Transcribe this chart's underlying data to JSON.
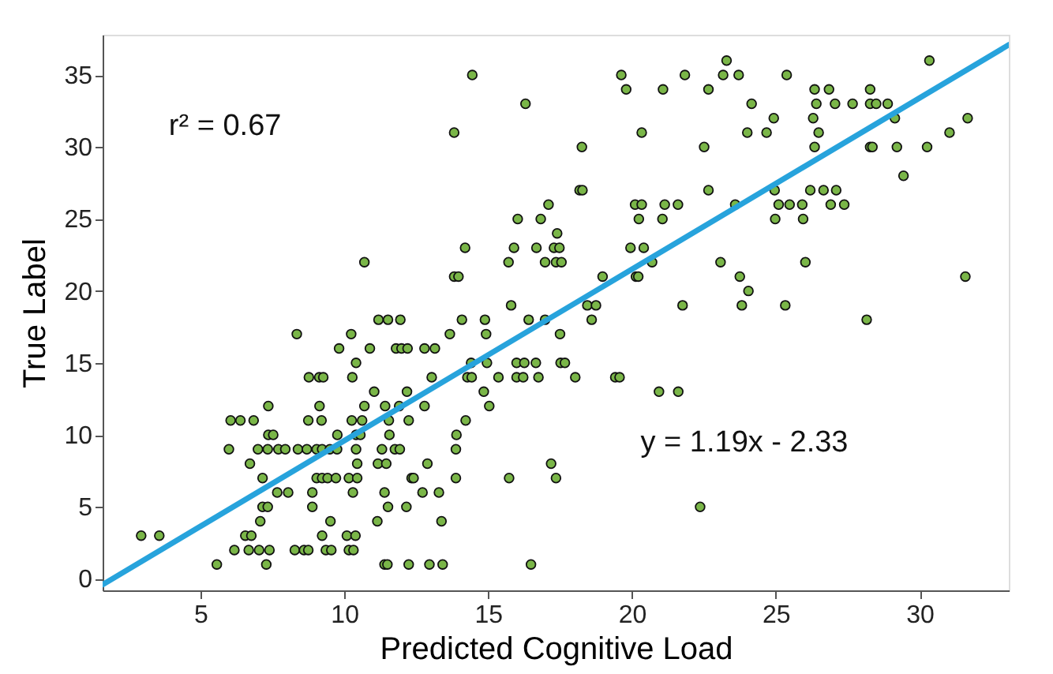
{
  "chart_data": {
    "type": "scatter",
    "xlabel": "Predicted Cognitive Load",
    "ylabel": "True Label",
    "xlim": [
      1.6,
      33.1
    ],
    "ylim": [
      -0.8,
      37.8
    ],
    "xticks": [
      5,
      10,
      15,
      20,
      25,
      30
    ],
    "yticks": [
      0,
      5,
      10,
      15,
      20,
      25,
      30,
      35
    ],
    "grid": false,
    "marker": "circle",
    "annotations": [
      "r² = 0.67",
      "y = 1.19x - 2.33"
    ],
    "series": [
      {
        "color": "#7ab648",
        "x": [
          5.57,
          7.29,
          11.4,
          11.5,
          12.24,
          12.96,
          13.42,
          16.49,
          6.18,
          6.68,
          7.04,
          7.4,
          8.28,
          8.6,
          8.75,
          9.36,
          9.55,
          10.16,
          10.32,
          2.94,
          3.57,
          6.56,
          6.77,
          9.23,
          10.09,
          10.39,
          7.08,
          9.52,
          11.15,
          13.38,
          7.16,
          7.34,
          8.89,
          11.52,
          12.16,
          22.37,
          7.67,
          8.05,
          8.89,
          10.3,
          11.4,
          12.72,
          13.29,
          7.16,
          9.04,
          9.23,
          9.42,
          9.71,
          10.16,
          10.45,
          12.34,
          12.41,
          13.88,
          15.73,
          17.36,
          6.72,
          10.45,
          11.17,
          11.46,
          12.89,
          17.19,
          5.99,
          7.0,
          7.34,
          7.71,
          7.95,
          8.39,
          8.7,
          9.04,
          9.23,
          9.5,
          9.75,
          10.41,
          11.31,
          11.76,
          11.93,
          13.88,
          7.36,
          7.53,
          9.76,
          10.41,
          10.56,
          11.57,
          13.9,
          6.05,
          6.39,
          6.85,
          8.75,
          9.21,
          10.26,
          10.62,
          11.55,
          12.24,
          14.22,
          7.36,
          9.14,
          10.7,
          11.42,
          11.91,
          12.79,
          15.04,
          11.04,
          12.18,
          14.85,
          20.94,
          21.61,
          8.77,
          9.13,
          9.27,
          10.28,
          13.04,
          14.28,
          14.43,
          15.36,
          15.99,
          16.22,
          16.75,
          18.03,
          19.42,
          19.57,
          10.41,
          14.41,
          14.96,
          15.99,
          16.26,
          16.66,
          17.52,
          17.67,
          9.82,
          10.89,
          11.8,
          11.99,
          12.2,
          12.79,
          13.15,
          8.35,
          10.24,
          13.67,
          14.93,
          17.5,
          11.19,
          11.52,
          11.95,
          14.09,
          14.89,
          16.41,
          16.98,
          18.6,
          28.16,
          15.8,
          18.45,
          18.75,
          21.76,
          23.82,
          25.33,
          24.05,
          13.82,
          13.97,
          18.98,
          20.14,
          20.22,
          23.75,
          31.59,
          10.7,
          15.71,
          16.98,
          17.36,
          17.55,
          20.7,
          23.08,
          26.03,
          14.2,
          15.9,
          16.68,
          17.29,
          17.48,
          19.95,
          20.41,
          17.4,
          16.03,
          16.83,
          20.24,
          21.06,
          24.98,
          25.95,
          17.1,
          20.11,
          20.34,
          21.14,
          21.6,
          23.59,
          25.1,
          25.48,
          25.92,
          26.91,
          27.38,
          18.18,
          18.28,
          22.66,
          24.96,
          26.2,
          26.66,
          27.1,
          29.44,
          18.26,
          22.51,
          26.35,
          28.28,
          28.36,
          29.21,
          30.26,
          13.82,
          20.34,
          24.01,
          24.68,
          26.49,
          31.04,
          24.93,
          26.3,
          29.14,
          31.67,
          16.3,
          24.16,
          26.41,
          27.06,
          27.67,
          28.28,
          28.49,
          28.89,
          19.8,
          21.08,
          22.66,
          26.35,
          26.85,
          28.28,
          14.45,
          19.63,
          21.84,
          23.17,
          23.71,
          25.38,
          23.29,
          30.34
        ],
        "values": [
          1,
          1,
          1,
          1,
          1,
          1,
          1,
          1,
          2,
          2,
          2,
          2,
          2,
          2,
          2,
          2,
          2,
          2,
          2,
          3,
          3,
          3,
          3,
          3,
          3,
          3,
          4,
          4,
          4,
          4,
          5,
          5,
          5,
          5,
          5,
          5,
          6,
          6,
          6,
          6,
          6,
          6,
          6,
          7,
          7,
          7,
          7,
          7,
          7,
          7,
          7,
          7,
          7,
          7,
          7,
          8,
          8,
          8,
          8,
          8,
          8,
          9,
          9,
          9,
          9,
          9,
          9,
          9,
          9,
          9,
          9,
          9,
          9,
          9,
          9,
          9,
          9,
          10,
          10,
          10,
          10,
          10,
          10,
          10,
          11,
          11,
          11,
          11,
          11,
          11,
          11,
          11,
          11,
          11,
          12,
          12,
          12,
          12,
          12,
          12,
          12,
          13,
          13,
          13,
          13,
          13,
          14,
          14,
          14,
          14,
          14,
          14,
          14,
          14,
          14,
          14,
          14,
          14,
          14,
          14,
          15,
          15,
          15,
          15,
          15,
          15,
          15,
          15,
          16,
          16,
          16,
          16,
          16,
          16,
          16,
          17,
          17,
          17,
          17,
          17,
          18,
          18,
          18,
          18,
          18,
          18,
          18,
          18,
          18,
          19,
          19,
          19,
          19,
          19,
          19,
          20,
          21,
          21,
          21,
          21,
          21,
          21,
          21,
          22,
          22,
          22,
          22,
          22,
          22,
          22,
          22,
          23,
          23,
          23,
          23,
          23,
          23,
          23,
          24,
          25,
          25,
          25,
          25,
          25,
          25,
          26,
          26,
          26,
          26,
          26,
          26,
          26,
          26,
          26,
          26,
          26,
          27,
          27,
          27,
          27,
          27,
          27,
          27,
          28,
          30,
          30,
          30,
          30,
          30,
          30,
          30,
          31,
          31,
          31,
          31,
          31,
          31,
          32,
          32,
          32,
          32,
          33,
          33,
          33,
          33,
          33,
          33,
          33,
          33,
          34,
          34,
          34,
          34,
          34,
          34,
          35,
          35,
          35,
          35,
          35,
          35,
          36,
          36
        ]
      },
      {
        "type": "line",
        "marker": "none",
        "color": "#27a3dc",
        "x": [
          1.6,
          33.1
        ],
        "values": [
          -0.4,
          37.1
        ]
      }
    ]
  }
}
